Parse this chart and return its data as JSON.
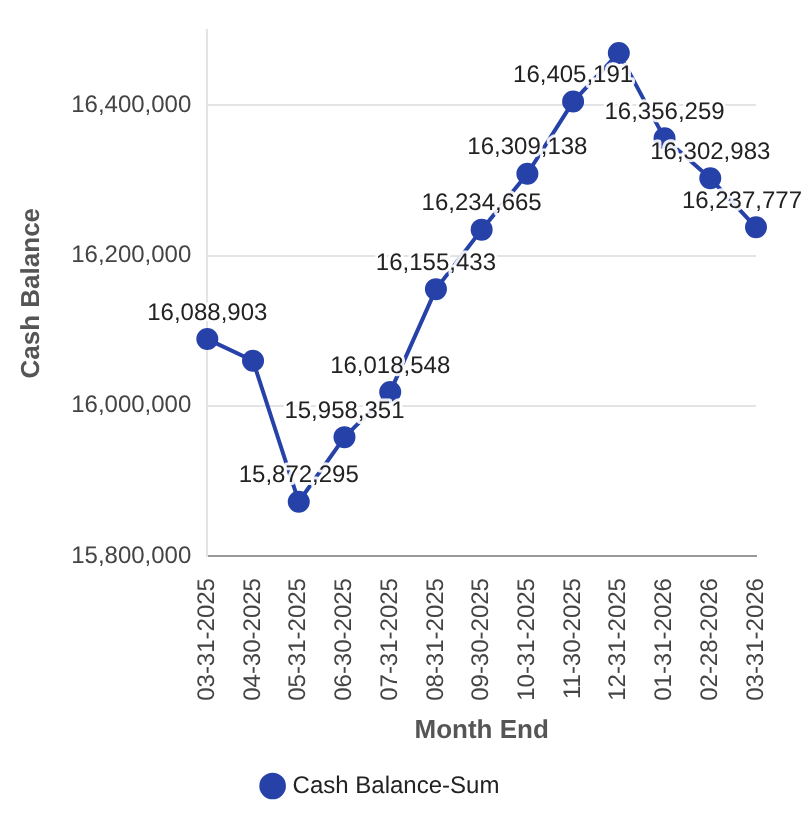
{
  "chart_data": {
    "type": "line",
    "xlabel": "Month End",
    "ylabel": "Cash Balance",
    "categories": [
      "03-31-2025",
      "04-30-2025",
      "05-31-2025",
      "06-30-2025",
      "07-31-2025",
      "08-31-2025",
      "09-30-2025",
      "10-31-2025",
      "11-30-2025",
      "12-31-2025",
      "01-31-2026",
      "02-28-2026",
      "03-31-2026"
    ],
    "series": [
      {
        "name": "Cash Balance-Sum",
        "color": "#2642a8",
        "values": [
          16088903,
          16060000,
          15872295,
          15958351,
          16018548,
          16155433,
          16234665,
          16309138,
          16405191,
          16470000,
          16356259,
          16302983,
          16237777
        ],
        "value_labels": [
          "16,088,903",
          null,
          "15,872,295",
          "15,958,351",
          "16,018,548",
          "16,155,433",
          "16,234,665",
          "16,309,138",
          "16,405,191",
          null,
          "16,356,259",
          "16,302,983",
          "16,237,777"
        ]
      }
    ],
    "ylim": [
      15800000,
      16500000
    ],
    "yticks": [
      {
        "value": 15800000,
        "label": "15,800,000"
      },
      {
        "value": 16000000,
        "label": "16,000,000"
      },
      {
        "value": 16200000,
        "label": "16,200,000"
      },
      {
        "value": 16400000,
        "label": "16,400,000"
      }
    ],
    "grid": "y",
    "legend": "bottom",
    "marker": "circle",
    "line_style": "solid"
  }
}
